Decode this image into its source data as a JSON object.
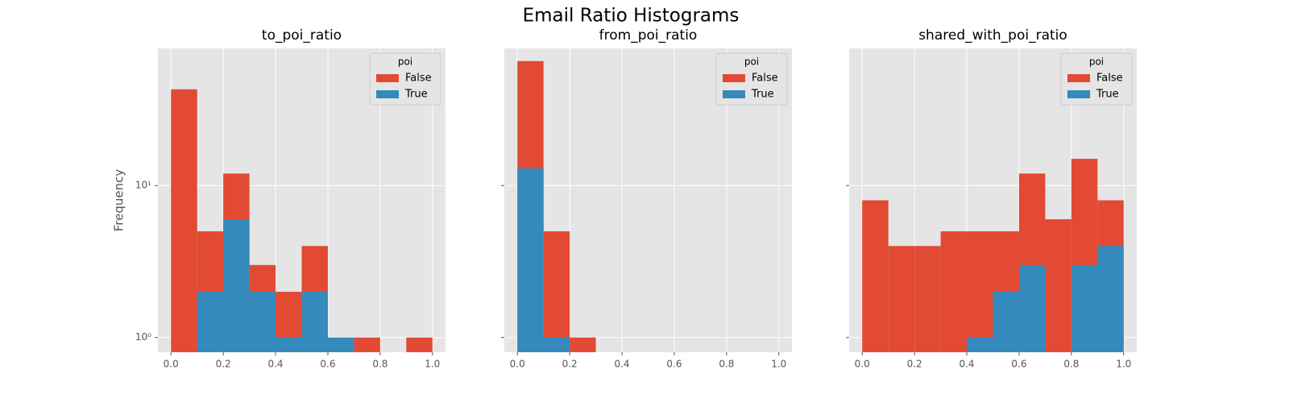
{
  "title": "Email Ratio Histograms",
  "chart_data": [
    {
      "type": "histogram",
      "title": "to_poi_ratio",
      "ylabel": "Frequency",
      "log_y": true,
      "grid": true,
      "legend": {
        "title": "poi",
        "loc": "upper right"
      },
      "bins": [
        0,
        0.1,
        0.2,
        0.3,
        0.4,
        0.5,
        0.6,
        0.7,
        0.8,
        0.9,
        1.0
      ],
      "series": [
        {
          "name": "False",
          "color": "#E24A33",
          "values": [
            43,
            5,
            12,
            3,
            2,
            4,
            0,
            1,
            0,
            1
          ]
        },
        {
          "name": "True",
          "color": "#348ABD",
          "values": [
            0,
            2,
            6,
            2,
            1,
            2,
            1,
            0,
            0,
            0
          ]
        }
      ],
      "xlim": [
        -0.05,
        1.05
      ],
      "xticks": [
        {
          "value": 0,
          "label": "0.0"
        },
        {
          "value": 0.2,
          "label": "0.2"
        },
        {
          "value": 0.4,
          "label": "0.4"
        },
        {
          "value": 0.6,
          "label": "0.6"
        },
        {
          "value": 0.8,
          "label": "0.8"
        },
        {
          "value": 1.0,
          "label": "1.0"
        }
      ],
      "ylim": [
        0.8,
        80
      ],
      "yticks": [
        {
          "value": 1,
          "label": "10⁰"
        },
        {
          "value": 10,
          "label": "10¹"
        }
      ]
    },
    {
      "type": "histogram",
      "title": "from_poi_ratio",
      "log_y": true,
      "grid": true,
      "legend": {
        "title": "poi",
        "loc": "upper right"
      },
      "bins": [
        0,
        0.1,
        0.2,
        0.3,
        0.4,
        0.5,
        0.6,
        0.7,
        0.8,
        0.9,
        1.0
      ],
      "series": [
        {
          "name": "False",
          "color": "#E24A33",
          "values": [
            66,
            5,
            1,
            0,
            0,
            0,
            0,
            0,
            0,
            0
          ]
        },
        {
          "name": "True",
          "color": "#348ABD",
          "values": [
            13,
            1,
            0,
            0,
            0,
            0,
            0,
            0,
            0,
            0
          ]
        }
      ],
      "xlim": [
        -0.05,
        1.05
      ],
      "xticks": [
        {
          "value": 0,
          "label": "0.0"
        },
        {
          "value": 0.2,
          "label": "0.2"
        },
        {
          "value": 0.4,
          "label": "0.4"
        },
        {
          "value": 0.6,
          "label": "0.6"
        },
        {
          "value": 0.8,
          "label": "0.8"
        },
        {
          "value": 1.0,
          "label": "1.0"
        }
      ],
      "ylim": [
        0.8,
        80
      ],
      "yticks": [
        1,
        10
      ]
    },
    {
      "type": "histogram",
      "title": "shared_with_poi_ratio",
      "log_y": true,
      "grid": true,
      "legend": {
        "title": "poi",
        "loc": "upper right"
      },
      "bins": [
        0,
        0.1,
        0.2,
        0.3,
        0.4,
        0.5,
        0.6,
        0.7,
        0.8,
        0.9,
        1.0
      ],
      "series": [
        {
          "name": "False",
          "color": "#E24A33",
          "values": [
            8,
            4,
            4,
            5,
            5,
            5,
            12,
            6,
            15,
            8
          ]
        },
        {
          "name": "True",
          "color": "#348ABD",
          "values": [
            0,
            0,
            0,
            0,
            1,
            2,
            3,
            0,
            3,
            4
          ]
        }
      ],
      "xlim": [
        -0.05,
        1.05
      ],
      "xticks": [
        {
          "value": 0,
          "label": "0.0"
        },
        {
          "value": 0.2,
          "label": "0.2"
        },
        {
          "value": 0.4,
          "label": "0.4"
        },
        {
          "value": 0.6,
          "label": "0.6"
        },
        {
          "value": 0.8,
          "label": "0.8"
        },
        {
          "value": 1.0,
          "label": "1.0"
        }
      ],
      "ylim": [
        0.8,
        80
      ],
      "yticks": [
        1,
        10
      ]
    }
  ]
}
